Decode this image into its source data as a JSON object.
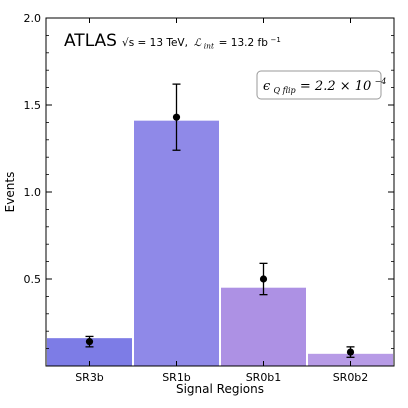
{
  "chart_data": {
    "type": "bar",
    "categories": [
      "SR3b",
      "SR1b",
      "SR0b1",
      "SR0b2"
    ],
    "values": [
      0.16,
      1.41,
      0.45,
      0.07
    ],
    "bar_colors": [
      "#7d7ce6",
      "#8f89e8",
      "#ad91e4",
      "#b79be6"
    ],
    "points": [
      0.14,
      1.43,
      0.5,
      0.08
    ],
    "errors_low": [
      0.03,
      0.19,
      0.09,
      0.03
    ],
    "errors_high": [
      0.03,
      0.19,
      0.09,
      0.03
    ],
    "xlabel": "Signal Regions",
    "ylabel": "Events",
    "ylim": [
      0,
      2.0
    ],
    "yticks": [
      "0.5",
      "1.0",
      "1.5",
      "2.0"
    ],
    "annotations": {
      "experiment": "ATLAS",
      "energy": "√s = 13 TeV,",
      "lumi_symbol": "ℒ",
      "lumi_sub": "int",
      "lumi_value": "= 13.2 fb",
      "lumi_exp": "−1",
      "qflip_symbol": "ϵ",
      "qflip_sub": "Q flip",
      "qflip_value": "= 2.2 × 10",
      "qflip_exp": "−4"
    }
  }
}
